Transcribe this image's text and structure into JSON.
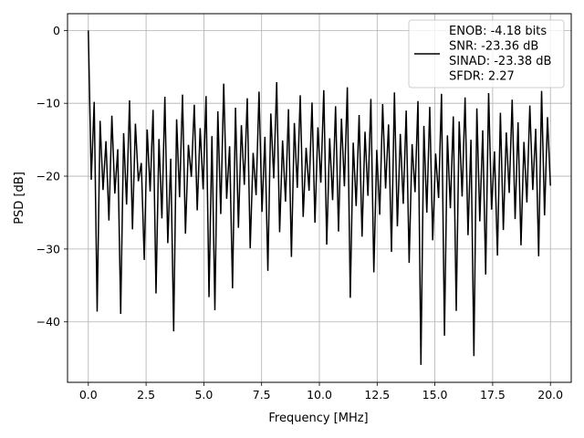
{
  "chart_data": {
    "type": "line",
    "xlabel": "Frequency [MHz]",
    "ylabel": "PSD [dB]",
    "xlim": [
      -0.9,
      20.9
    ],
    "ylim": [
      -48.3,
      2.3
    ],
    "xticks": [
      0.0,
      2.5,
      5.0,
      7.5,
      10.0,
      12.5,
      15.0,
      17.5,
      20.0
    ],
    "xtick_labels": [
      "0.0",
      "2.5",
      "5.0",
      "7.5",
      "10.0",
      "12.5",
      "15.0",
      "17.5",
      "20.0"
    ],
    "yticks": [
      0,
      -10,
      -20,
      -30,
      -40
    ],
    "ytick_labels": [
      "0",
      "−10",
      "−20",
      "−30",
      "−40"
    ],
    "grid": true,
    "legend_position": "top-right",
    "line_color": "#000000",
    "series": [
      {
        "name": "ENOB: -4.18 bits\nSNR: -23.36 dB\nSINAD: -23.38 dB\nSFDR: 2.27",
        "x_range": [
          0.0,
          20.0
        ],
        "values": [
          0.0,
          -20.5,
          -9.8,
          -38.6,
          -12.4,
          -21.9,
          -15.2,
          -26.1,
          -11.7,
          -22.4,
          -16.3,
          -38.9,
          -14.1,
          -23.9,
          -9.6,
          -27.3,
          -12.8,
          -20.7,
          -18.2,
          -31.5,
          -13.6,
          -22.1,
          -10.9,
          -36.1,
          -14.9,
          -25.8,
          -9.1,
          -29.2,
          -17.6,
          -41.3,
          -12.2,
          -22.9,
          -8.8,
          -27.9,
          -15.7,
          -20.1,
          -10.2,
          -24.7,
          -13.4,
          -21.8,
          -9.0,
          -36.6,
          -14.5,
          -38.4,
          -11.1,
          -25.2,
          -7.3,
          -23.1,
          -15.9,
          -35.4,
          -10.6,
          -27.1,
          -13.0,
          -21.2,
          -9.3,
          -29.9,
          -16.8,
          -22.6,
          -8.4,
          -24.9,
          -14.6,
          -33.0,
          -11.4,
          -20.3,
          -7.1,
          -27.7,
          -15.1,
          -23.5,
          -10.8,
          -31.1,
          -12.7,
          -21.6,
          -8.9,
          -25.6,
          -16.1,
          -22.0,
          -9.9,
          -26.4,
          -13.3,
          -20.9,
          -8.2,
          -29.4,
          -14.8,
          -23.3,
          -10.4,
          -27.6,
          -12.1,
          -21.4,
          -7.8,
          -36.7,
          -15.4,
          -24.1,
          -11.6,
          -28.3,
          -13.9,
          -22.7,
          -9.4,
          -33.2,
          -16.4,
          -25.3,
          -10.1,
          -21.7,
          -12.9,
          -30.4,
          -8.5,
          -26.9,
          -14.2,
          -23.8,
          -11.0,
          -31.9,
          -15.6,
          -22.2,
          -9.7,
          -45.9,
          -13.1,
          -25.0,
          -10.5,
          -28.8,
          -16.9,
          -23.0,
          -8.7,
          -41.9,
          -14.4,
          -24.4,
          -11.8,
          -38.5,
          -12.5,
          -22.8,
          -9.2,
          -28.1,
          -15.0,
          -44.7,
          -10.7,
          -26.2,
          -13.7,
          -33.5,
          -8.6,
          -24.6,
          -16.6,
          -30.9,
          -11.3,
          -27.4,
          -14.0,
          -22.3,
          -9.5,
          -25.9,
          -12.6,
          -29.5,
          -15.3,
          -23.6,
          -10.3,
          -21.9,
          -13.5,
          -31.0,
          -8.3,
          -25.4,
          -11.9,
          -21.3
        ]
      }
    ]
  }
}
